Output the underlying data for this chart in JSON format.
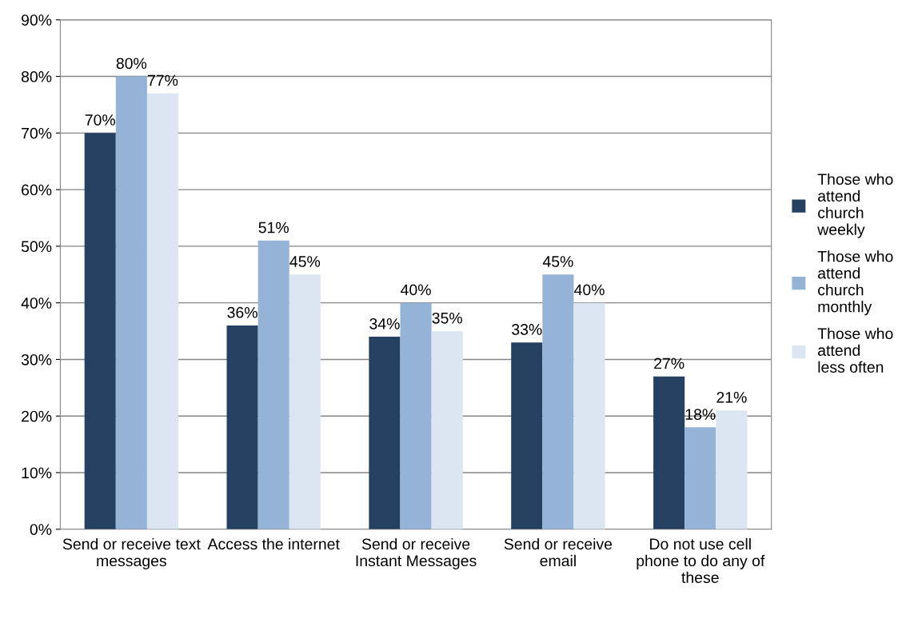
{
  "chart_data": {
    "type": "bar",
    "categories": [
      "Send or receive text messages",
      "Access the internet",
      "Send or receive Instant Messages",
      "Send or receive email",
      "Do not use cell phone to do any of these"
    ],
    "series": [
      {
        "name": "Those who attend church weekly",
        "color": "#264061",
        "values": [
          70,
          36,
          34,
          33,
          27
        ],
        "value_labels": [
          "70%",
          "36%",
          "34%",
          "33%",
          "27%"
        ]
      },
      {
        "name": "Those who attend church monthly",
        "color": "#95b3d7",
        "values": [
          80,
          51,
          40,
          45,
          18
        ],
        "value_labels": [
          "80%",
          "51%",
          "40%",
          "45%",
          "18%"
        ]
      },
      {
        "name": "Those who attend less often",
        "color": "#dce6f2",
        "values": [
          77,
          45,
          35,
          40,
          21
        ],
        "value_labels": [
          "77%",
          "45%",
          "35%",
          "40%",
          "21%"
        ]
      }
    ],
    "ylim": [
      0,
      90
    ],
    "yticks": [
      {
        "value": 0,
        "label": "0%"
      },
      {
        "value": 10,
        "label": "10%"
      },
      {
        "value": 20,
        "label": "20%"
      },
      {
        "value": 30,
        "label": "30%"
      },
      {
        "value": 40,
        "label": "40%"
      },
      {
        "value": 50,
        "label": "50%"
      },
      {
        "value": 60,
        "label": "60%"
      },
      {
        "value": 70,
        "label": "70%"
      },
      {
        "value": 80,
        "label": "80%"
      },
      {
        "value": 90,
        "label": "90%"
      }
    ],
    "grid": "y",
    "legend": "right"
  }
}
